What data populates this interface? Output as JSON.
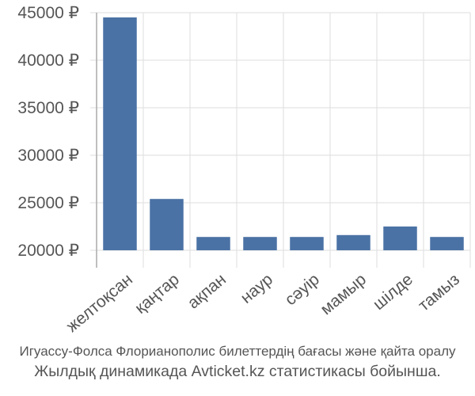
{
  "caption": {
    "line1": "Игуассу-Фолса Флорианополис билеттердің бағасы және қайта оралу",
    "line2": "Жылдық динамикада Avticket.kz статистикасы бойынша."
  },
  "chart_data": {
    "type": "bar",
    "categories": [
      "желтоқсан",
      "қаңтар",
      "ақпан",
      "наур",
      "сәуір",
      "мамыр",
      "шілде",
      "тамыз"
    ],
    "values": [
      44500,
      25400,
      21400,
      21400,
      21400,
      21600,
      22500,
      21400
    ],
    "yticks": [
      20000,
      25000,
      30000,
      35000,
      40000,
      45000
    ],
    "ytick_labels": [
      "20000 ₽",
      "25000 ₽",
      "30000 ₽",
      "35000 ₽",
      "40000 ₽",
      "45000 ₽"
    ],
    "ylim": [
      20000,
      45000
    ],
    "grid": true,
    "bar_color": "#4a72a5",
    "grid_color": "#dddddd",
    "axis_color": "#aaaaaa"
  }
}
